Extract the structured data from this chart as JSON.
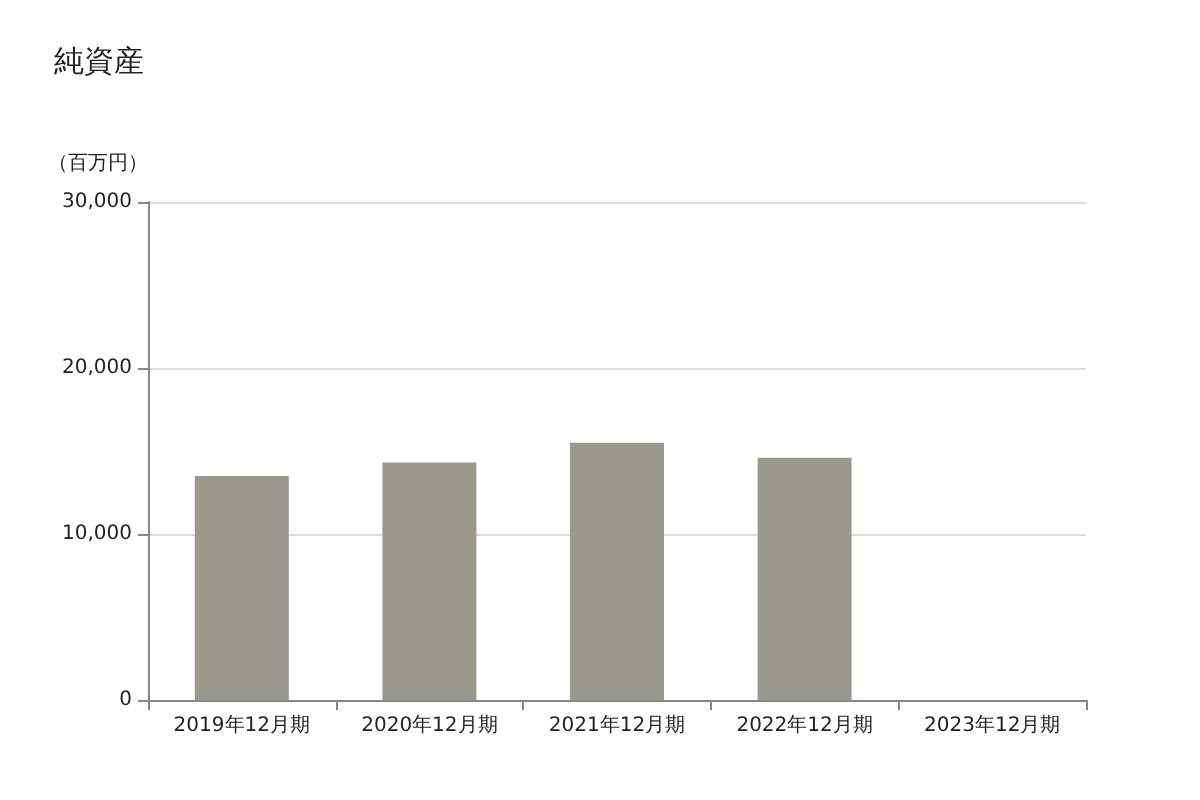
{
  "chart_data": {
    "type": "bar",
    "title": "純資産",
    "ylabel": "（百万円）",
    "categories": [
      "2019年12月期",
      "2020年12月期",
      "2021年12月期",
      "2022年12月期",
      "2023年12月期"
    ],
    "values": [
      13500,
      14300,
      15500,
      14600,
      null
    ],
    "color": "#999990",
    "ylim": [
      0,
      30000
    ],
    "yticks": [
      0,
      {
        "value": 10000,
        "label": "10,000"
      },
      {
        "value": 20000,
        "label": "20,000"
      },
      {
        "value": 30000,
        "label": "30,000"
      }
    ],
    "grid": "y"
  }
}
